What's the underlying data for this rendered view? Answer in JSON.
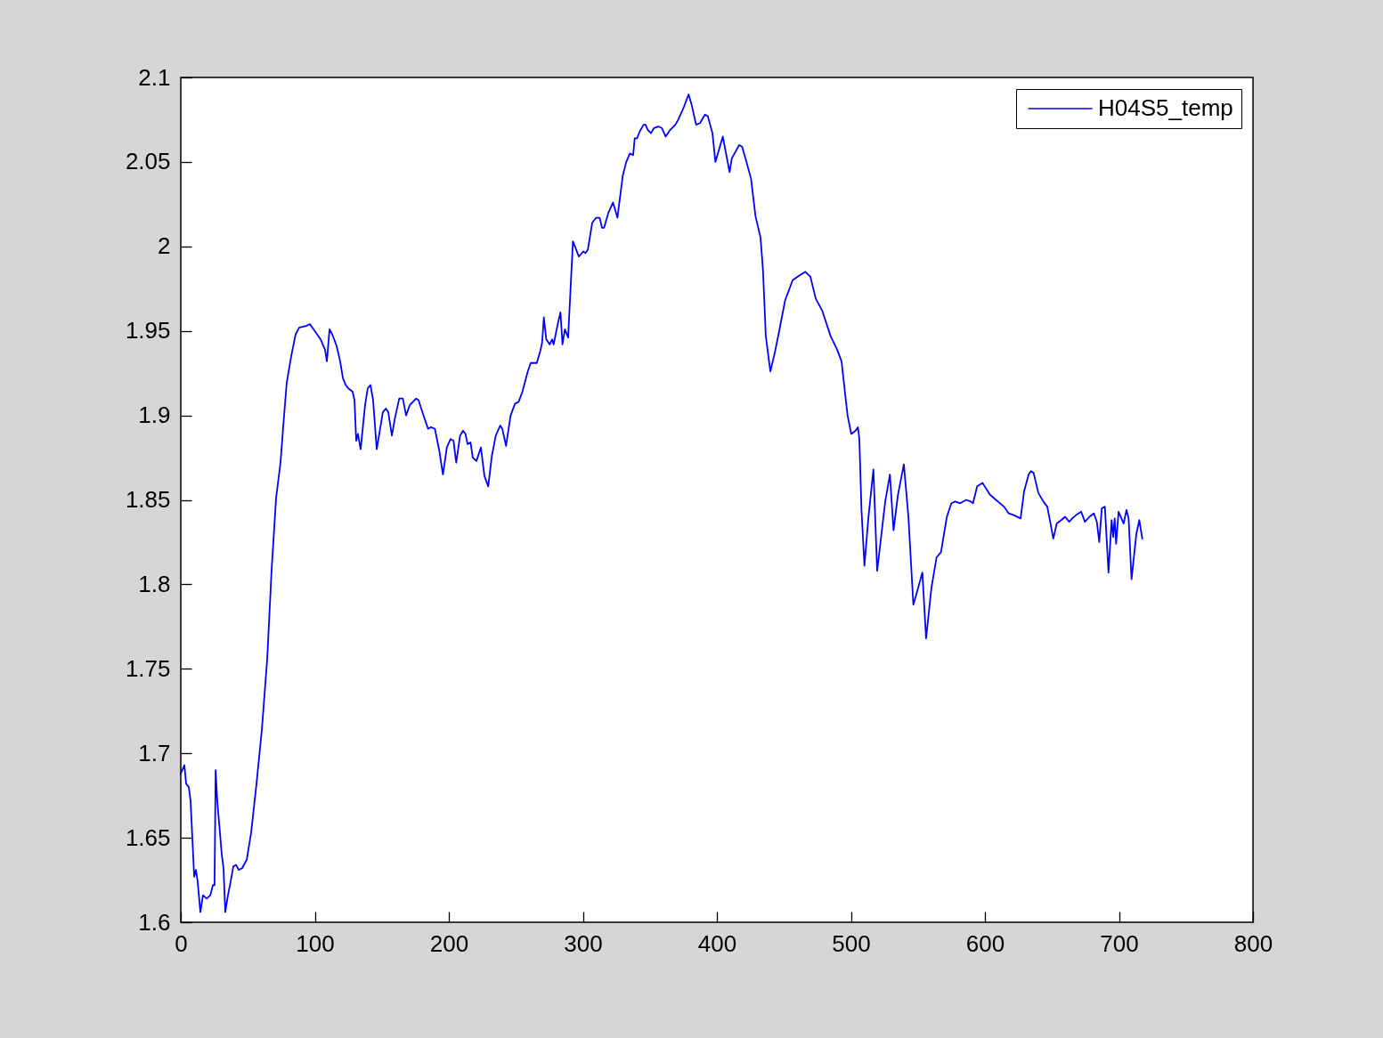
{
  "chart_data": {
    "type": "line",
    "x": [
      0,
      2.7,
      4,
      6,
      7.3,
      10,
      11.3,
      12.6,
      14.6,
      16.6,
      19.3,
      22,
      24,
      25.2,
      26,
      27.2,
      30.6,
      31.9,
      33.2,
      35.2,
      37.2,
      39.2,
      41.2,
      43.2,
      45.8,
      49.2,
      52.5,
      56.5,
      60.5,
      64.5,
      67.8,
      71.1,
      74.4,
      76.4,
      79,
      82.4,
      85.7,
      88.4,
      93.7,
      96.3,
      99,
      104.3,
      107.6,
      109,
      111,
      113,
      116.3,
      118.9,
      121,
      123,
      125,
      128.2,
      129.6,
      130.9,
      132.2,
      134.2,
      137.5,
      139.5,
      141.5,
      143.5,
      146.2,
      150.8,
      153,
      154.8,
      157.5,
      159.7,
      163,
      165.7,
      168.1,
      170.8,
      175.6,
      177.4,
      180.7,
      184.5,
      186.7,
      189.6,
      192.9,
      195.6,
      198.5,
      201.3,
      203.5,
      205.5,
      208.4,
      210.6,
      212.4,
      214,
      216.2,
      217.9,
      220.6,
      223.9,
      226.6,
      229.4,
      232.1,
      235,
      238.3,
      239.9,
      242.7,
      246.1,
      249.4,
      252.1,
      254.9,
      258.9,
      261.1,
      265.6,
      268.2,
      269.6,
      270.9,
      272.7,
      275.3,
      277.1,
      278.2,
      281,
      283.3,
      284.8,
      286.6,
      289,
      292.6,
      297,
      300.3,
      301.9,
      303.7,
      307,
      309.9,
      312.5,
      314.3,
      315.8,
      319.1,
      322.5,
      325.8,
      329.8,
      332.4,
      335.1,
      337.5,
      338.7,
      340.4,
      342.4,
      345.3,
      346.8,
      348.4,
      350.8,
      353,
      356.4,
      359,
      361.7,
      365.2,
      369,
      371.2,
      375.6,
      378.9,
      381.1,
      384.5,
      387.4,
      391.1,
      393.3,
      396.7,
      398.9,
      404.4,
      409.5,
      411.1,
      416.6,
      418.8,
      422.1,
      425.5,
      428.8,
      432.6,
      434.4,
      436.5,
      439.9,
      443.2,
      446.5,
      450.9,
      456.5,
      462,
      466,
      469.8,
      473.8,
      478.6,
      484.8,
      489.7,
      493,
      497.5,
      500.3,
      503.5,
      505.2,
      506.3,
      507.9,
      510.1,
      513,
      516.8,
      518.1,
      519.6,
      521.8,
      525.6,
      529.1,
      531.8,
      535.1,
      539.5,
      542.9,
      546.6,
      549.5,
      553.3,
      556.1,
      560.1,
      563.9,
      567.2,
      571.6,
      575,
      577.8,
      581.6,
      586,
      589.4,
      591.1,
      594.2,
      598.2,
      603.8,
      608.2,
      614.2,
      617.7,
      621.5,
      626.6,
      629.2,
      632.6,
      634.3,
      636.3,
      639.9,
      643.6,
      646.5,
      648.7,
      651,
      653.6,
      656.9,
      659.8,
      662.9,
      665.1,
      668,
      671.8,
      674.6,
      678,
      681.3,
      683.5,
      685.3,
      687.2,
      689.5,
      692.2,
      694.5,
      695.7,
      696.8,
      697.9,
      699.7,
      703.5,
      705.6,
      707.2,
      709.4,
      713,
      715.2,
      717.4
    ],
    "series": [
      {
        "name": "H04S5_temp",
        "color": "#0000ff",
        "values": [
          1.688,
          1.693,
          1.682,
          1.68,
          1.672,
          1.627,
          1.631,
          1.624,
          1.606,
          1.616,
          1.614,
          1.616,
          1.622,
          1.622,
          1.69,
          1.672,
          1.64,
          1.632,
          1.606,
          1.616,
          1.624,
          1.633,
          1.634,
          1.631,
          1.632,
          1.637,
          1.653,
          1.682,
          1.714,
          1.756,
          1.809,
          1.851,
          1.872,
          1.893,
          1.919,
          1.935,
          1.948,
          1.952,
          1.953,
          1.954,
          1.951,
          1.945,
          1.939,
          1.932,
          1.951,
          1.948,
          1.941,
          1.932,
          1.922,
          1.918,
          1.916,
          1.914,
          1.909,
          1.885,
          1.889,
          1.88,
          1.906,
          1.916,
          1.918,
          1.909,
          1.88,
          1.902,
          1.904,
          1.902,
          1.888,
          1.898,
          1.91,
          1.91,
          1.9,
          1.906,
          1.91,
          1.909,
          1.901,
          1.892,
          1.893,
          1.892,
          1.879,
          1.865,
          1.881,
          1.886,
          1.885,
          1.872,
          1.888,
          1.891,
          1.889,
          1.883,
          1.884,
          1.875,
          1.873,
          1.881,
          1.864,
          1.858,
          1.876,
          1.888,
          1.894,
          1.892,
          1.882,
          1.9,
          1.907,
          1.908,
          1.914,
          1.926,
          1.931,
          1.931,
          1.938,
          1.943,
          1.958,
          1.945,
          1.942,
          1.945,
          1.942,
          1.953,
          1.961,
          1.942,
          1.951,
          1.946,
          2.003,
          1.994,
          1.997,
          1.996,
          1.998,
          2.014,
          2.017,
          2.017,
          2.011,
          2.011,
          2.02,
          2.026,
          2.017,
          2.042,
          2.05,
          2.055,
          2.054,
          2.064,
          2.064,
          2.068,
          2.072,
          2.072,
          2.069,
          2.067,
          2.07,
          2.071,
          2.07,
          2.065,
          2.069,
          2.072,
          2.075,
          2.083,
          2.09,
          2.084,
          2.072,
          2.073,
          2.078,
          2.077,
          2.067,
          2.05,
          2.065,
          2.044,
          2.052,
          2.06,
          2.059,
          2.05,
          2.04,
          2.018,
          2.005,
          1.986,
          1.947,
          1.926,
          1.937,
          1.95,
          1.968,
          1.98,
          1.983,
          1.985,
          1.982,
          1.969,
          1.962,
          1.947,
          1.939,
          1.932,
          1.9,
          1.889,
          1.891,
          1.893,
          1.886,
          1.844,
          1.811,
          1.839,
          1.868,
          1.84,
          1.808,
          1.823,
          1.849,
          1.865,
          1.832,
          1.853,
          1.871,
          1.84,
          1.788,
          1.796,
          1.807,
          1.768,
          1.798,
          1.816,
          1.819,
          1.84,
          1.848,
          1.849,
          1.848,
          1.85,
          1.849,
          1.848,
          1.858,
          1.86,
          1.853,
          1.85,
          1.846,
          1.842,
          1.841,
          1.839,
          1.855,
          1.865,
          1.867,
          1.866,
          1.854,
          1.849,
          1.846,
          1.837,
          1.827,
          1.836,
          1.838,
          1.84,
          1.837,
          1.839,
          1.841,
          1.843,
          1.837,
          1.84,
          1.842,
          1.837,
          1.825,
          1.845,
          1.846,
          1.807,
          1.838,
          1.828,
          1.839,
          1.824,
          1.843,
          1.836,
          1.844,
          1.839,
          1.803,
          1.83,
          1.838,
          1.827
        ]
      }
    ],
    "xlim": [
      0,
      800
    ],
    "xticks": [
      0,
      100,
      200,
      300,
      400,
      500,
      600,
      700,
      800
    ],
    "ylim": [
      1.6,
      2.1
    ],
    "yticks": [
      1.6,
      1.65,
      1.7,
      1.75,
      1.8,
      1.85,
      1.9,
      1.95,
      2,
      2.05,
      2.1
    ],
    "legend": "top right"
  }
}
